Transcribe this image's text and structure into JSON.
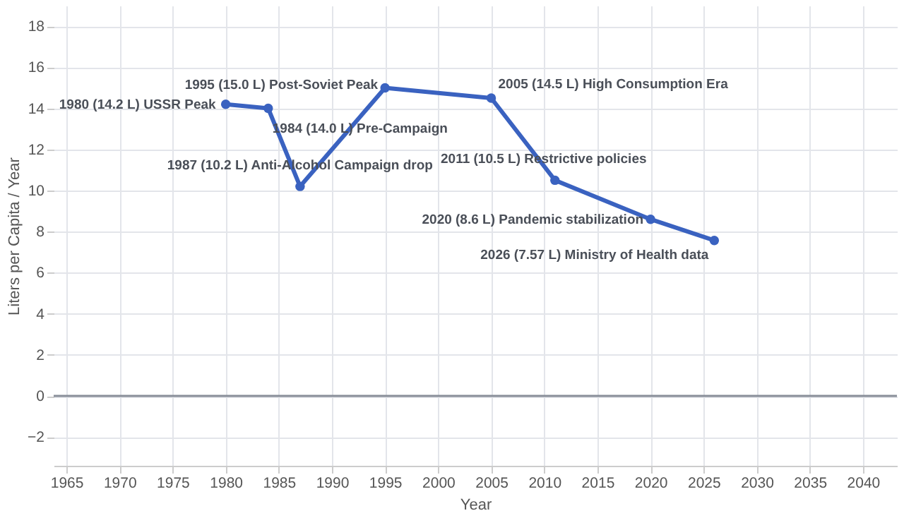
{
  "chart_data": {
    "type": "line",
    "xlabel": "Year",
    "ylabel": "Liters per Capita / Year",
    "x": [
      1980,
      1984,
      1987,
      1995,
      2005,
      2011,
      2020,
      2026
    ],
    "series": [
      {
        "color": "#3a62c0",
        "values": [
          14.2,
          14.0,
          10.2,
          15.0,
          14.5,
          10.5,
          8.6,
          7.57
        ]
      }
    ],
    "xlim": [
      1963.8,
      2043.2
    ],
    "ylim": [
      -3.4,
      19
    ],
    "xticks": [
      1965,
      1970,
      1975,
      1980,
      1985,
      1990,
      1995,
      2000,
      2005,
      2010,
      2015,
      2020,
      2025,
      2030,
      2035,
      2040
    ],
    "yticks": [
      -2,
      0,
      2,
      4,
      6,
      8,
      10,
      12,
      14,
      16,
      18
    ],
    "annotations": [
      {
        "text": "1980 (14.2 L) USSR Peak",
        "x": 1980,
        "y": 14.2
      },
      {
        "text": "1984 (14.0 L) Pre-Campaign",
        "x": 1984,
        "y": 14.0
      },
      {
        "text": "1987 (10.2 L) Anti-Alcohol Campaign drop",
        "x": 1987,
        "y": 10.2
      },
      {
        "text": "1995 (15.0 L) Post-Soviet Peak",
        "x": 1995,
        "y": 15.0
      },
      {
        "text": "2005 (14.5 L) High Consumption Era",
        "x": 2005,
        "y": 14.5
      },
      {
        "text": "2011 (10.5 L) Restrictive policies",
        "x": 2011,
        "y": 10.5
      },
      {
        "text": "2020 (8.6 L) Pandemic stabilization",
        "x": 2020,
        "y": 8.6
      },
      {
        "text": "2026 (7.57 L) Ministry of Health data",
        "x": 2026,
        "y": 7.57
      }
    ],
    "ref_lines": [
      {
        "axis": "y",
        "value": 0,
        "color": "#8a8f99"
      }
    ],
    "grid": true,
    "marker": "circle",
    "line_style": "solid"
  }
}
